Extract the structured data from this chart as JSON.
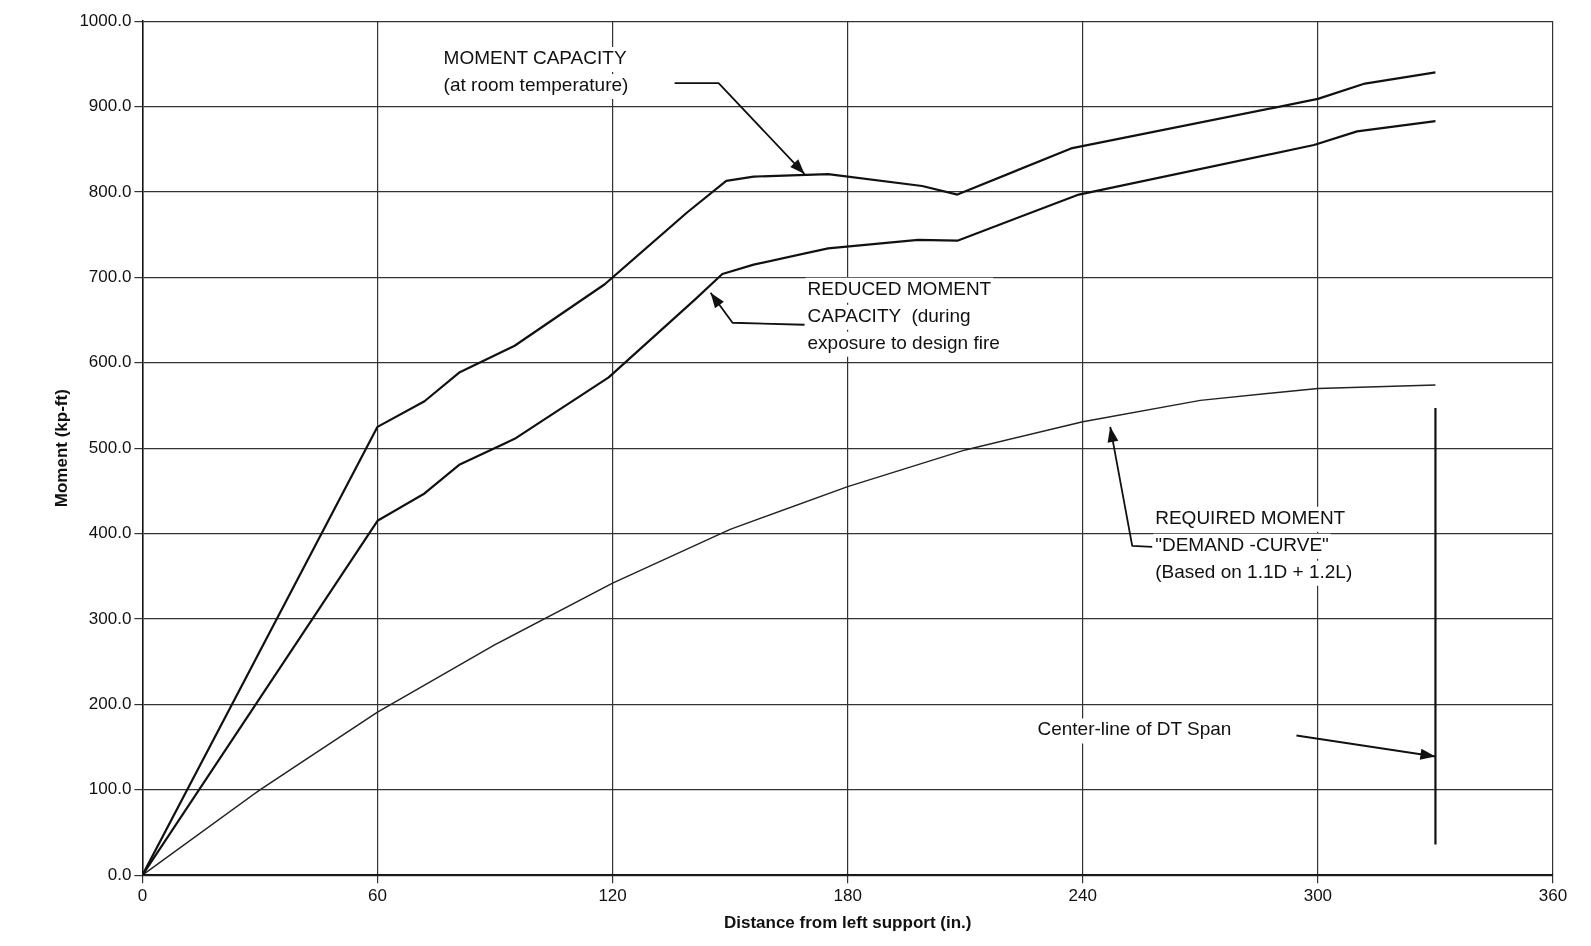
{
  "chart_data": {
    "type": "line",
    "xlabel": "Distance from left support (in.)",
    "ylabel": "Moment (kp-ft)",
    "xlim": [
      0,
      360
    ],
    "xticks": [
      0,
      60,
      120,
      180,
      240,
      300,
      360
    ],
    "ylim": [
      0,
      1000
    ],
    "yticks": [
      {
        "value": 0,
        "label": "0.0"
      },
      {
        "value": 100,
        "label": "100.0"
      },
      {
        "value": 200,
        "label": "200.0"
      },
      {
        "value": 300,
        "label": "300.0"
      },
      {
        "value": 400,
        "label": "400.0"
      },
      {
        "value": 500,
        "label": "500.0"
      },
      {
        "value": 600,
        "label": "600.0"
      },
      {
        "value": 700,
        "label": "700.0"
      },
      {
        "value": 800,
        "label": "800.0"
      },
      {
        "value": 900,
        "label": "900.0"
      },
      {
        "value": 1000,
        "label": "1000.0"
      }
    ],
    "grid": true,
    "marker": "none",
    "line_style": "solid",
    "series": [
      {
        "type": "line",
        "color": "#111111",
        "x": [
          0,
          60,
          72,
          81,
          95,
          118,
          139,
          149,
          156,
          175,
          199,
          208,
          237,
          300,
          312,
          330
        ],
        "values": [
          0,
          525,
          555,
          589,
          620,
          692,
          776,
          813,
          818,
          821,
          807,
          797,
          851,
          909,
          927,
          940
        ]
      },
      {
        "type": "line",
        "color": "#111111",
        "x": [
          0,
          60,
          72,
          81,
          95,
          119,
          141,
          148,
          156,
          175,
          198,
          208,
          239,
          299,
          310,
          330
        ],
        "values": [
          0,
          415,
          447,
          481,
          511,
          583,
          674,
          704,
          715,
          734,
          744,
          743,
          797,
          855,
          871,
          883
        ]
      },
      {
        "type": "line",
        "color": "#222222",
        "x": [
          0,
          30,
          60,
          90,
          120,
          150,
          180,
          210,
          240,
          270,
          300,
          330
        ],
        "values": [
          0,
          100,
          191,
          270,
          342,
          405,
          455,
          498,
          531,
          556,
          570,
          574
        ]
      },
      {
        "type": "line",
        "color": "#111111",
        "x": [
          330,
          330
        ],
        "values": [
          36,
          547
        ]
      }
    ],
    "annotations": [
      "MOMENT CAPACITY\n(at room temperature)",
      "REDUCED MOMENT\nCAPACITY  (during\nexposure to design fire",
      "REQUIRED MOMENT\n\"DEMAND -CURVE\"\n(Based on 1.1D + 1.2L)",
      "Center-line of DT Span"
    ]
  }
}
